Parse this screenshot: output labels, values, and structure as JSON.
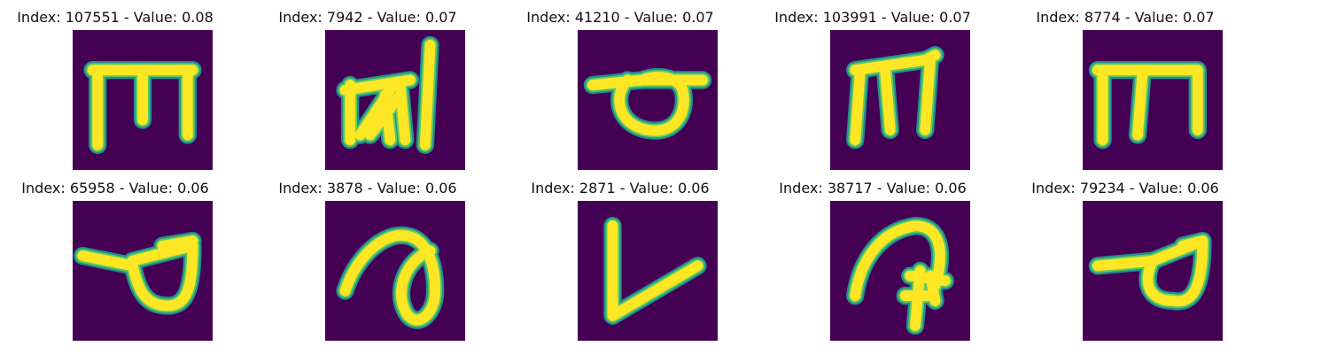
{
  "colors": {
    "background": "#440154",
    "stroke_outer": "#21908d",
    "stroke_mid": "#5ec962",
    "stroke_inner": "#fde725"
  },
  "panels": [
    {
      "title": "Index: 107551 - Value: 0.08",
      "glyph": "m-shape"
    },
    {
      "title": "Index: 7942 - Value: 0.07",
      "glyph": "scribble-m-shape"
    },
    {
      "title": "Index: 41210 - Value: 0.07",
      "glyph": "loop-shape"
    },
    {
      "title": "Index: 103991 - Value: 0.07",
      "glyph": "m-shape"
    },
    {
      "title": "Index: 8774 - Value: 0.07",
      "glyph": "m-shape"
    },
    {
      "title": "Index: 65958 - Value: 0.06",
      "glyph": "loop-shape"
    },
    {
      "title": "Index: 3878 - Value: 0.06",
      "glyph": "curl-shape"
    },
    {
      "title": "Index: 2871 - Value: 0.06",
      "glyph": "v-shape"
    },
    {
      "title": "Index: 38717 - Value: 0.06",
      "glyph": "hook-arrow-shape"
    },
    {
      "title": "Index: 79234 - Value: 0.06",
      "glyph": "loop-shape"
    }
  ]
}
